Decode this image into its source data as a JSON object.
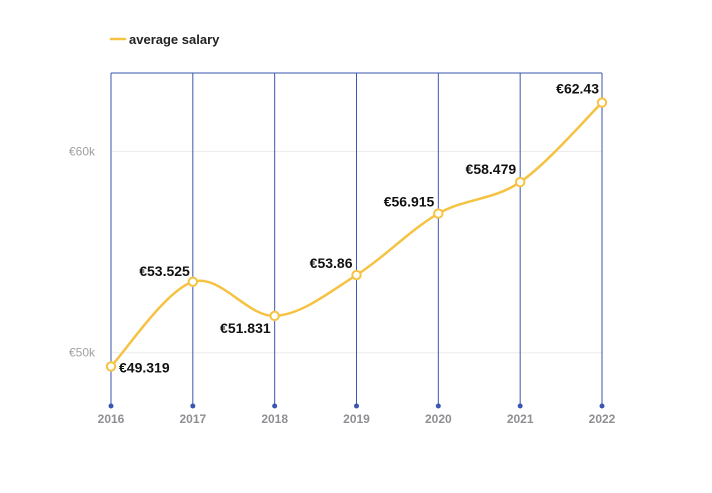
{
  "chart_data": {
    "type": "line",
    "legend": {
      "placement": "top-left",
      "label": "average salary"
    },
    "x": [
      "2016",
      "2017",
      "2018",
      "2019",
      "2020",
      "2021",
      "2022"
    ],
    "series": [
      {
        "name": "average salary",
        "values": [
          49.319,
          53.525,
          51.831,
          53.86,
          56.915,
          58.479,
          62.43
        ],
        "labels": [
          "€49.319",
          "€53.525",
          "€51.831",
          "€53.86",
          "€56.915",
          "€58.479",
          "€62.43"
        ]
      }
    ],
    "yticks": [
      {
        "value": 50,
        "label": "€50k"
      },
      {
        "value": 60,
        "label": "€60k"
      }
    ],
    "ylim": [
      47.8,
      63.9
    ],
    "grid": {
      "horizontal": true,
      "vertical": true
    },
    "colors": {
      "line": "#f5c242",
      "vertical_grid": "#3a56b0",
      "horizontal_grid": "#ececec"
    }
  }
}
